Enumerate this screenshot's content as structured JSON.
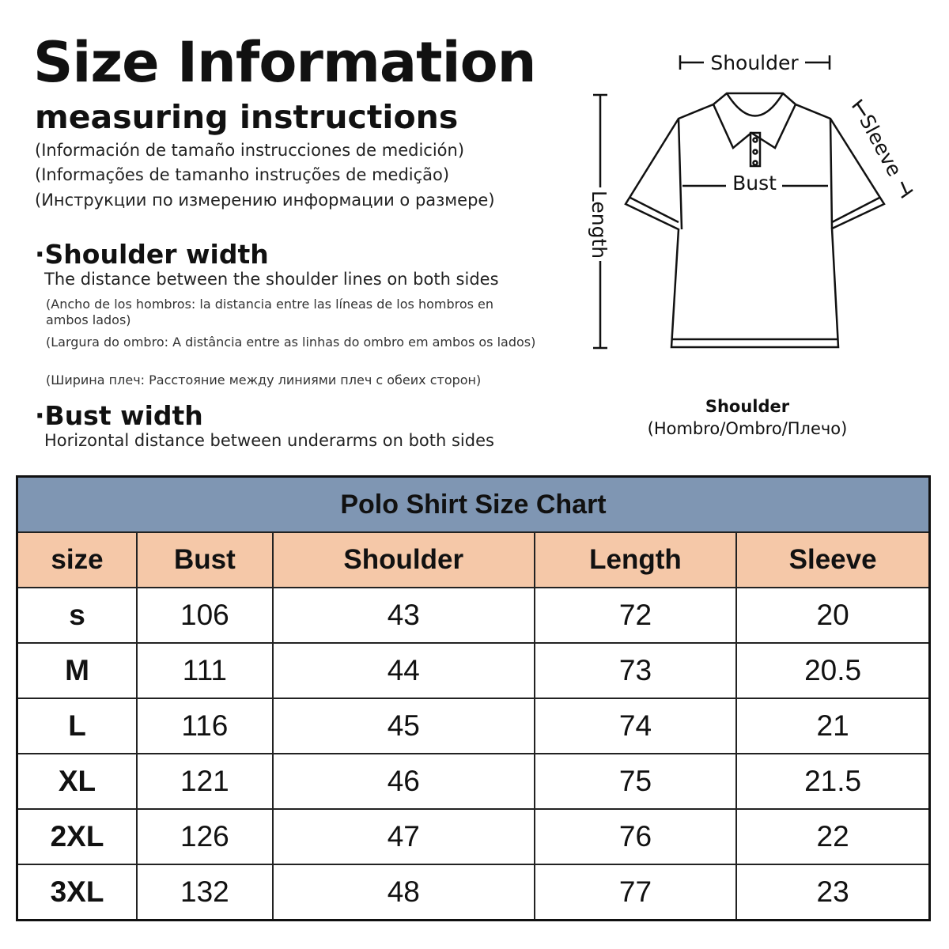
{
  "header": {
    "title": "Size Information",
    "subtitle": "measuring instructions",
    "translations": [
      "(Información de tamaño instrucciones de medición)",
      "(Informações de tamanho instruções de medição)",
      "(Инструкции по измерению информации о размере)"
    ]
  },
  "shoulder_width": {
    "heading": "·Shoulder width",
    "description": "The distance between the shoulder lines on both sides",
    "translations": [
      "(Ancho de los hombros: la distancia entre las líneas de los hombros en ambos lados)",
      "(Largura do ombro: A distância entre as linhas do ombro em ambos os lados)",
      "(Ширина плеч: Расстояние между линиями плеч с обеих сторон)"
    ]
  },
  "bust_width": {
    "heading": "·Bust width",
    "description": "Horizontal distance between underarms on both sides"
  },
  "diagram": {
    "shoulder_label": "Shoulder",
    "sleeve_label": "Sleeve",
    "length_label": "Length",
    "bust_label": "Bust",
    "caption": "Shoulder",
    "caption_translations": "(Hombro/Ombro/Плечо)"
  },
  "size_chart": {
    "title": "Polo Shirt Size Chart",
    "columns": [
      "size",
      "Bust",
      "Shoulder",
      "Length",
      "Sleeve"
    ],
    "rows": [
      [
        "s",
        "106",
        "43",
        "72",
        "20"
      ],
      [
        "M",
        "111",
        "44",
        "73",
        "20.5"
      ],
      [
        "L",
        "116",
        "45",
        "74",
        "21"
      ],
      [
        "XL",
        "121",
        "46",
        "75",
        "21.5"
      ],
      [
        "2XL",
        "126",
        "47",
        "76",
        "22"
      ],
      [
        "3XL",
        "132",
        "48",
        "77",
        "23"
      ]
    ],
    "colors": {
      "title_bg": "#7f96b3",
      "header_bg": "#f5c8a8"
    }
  }
}
